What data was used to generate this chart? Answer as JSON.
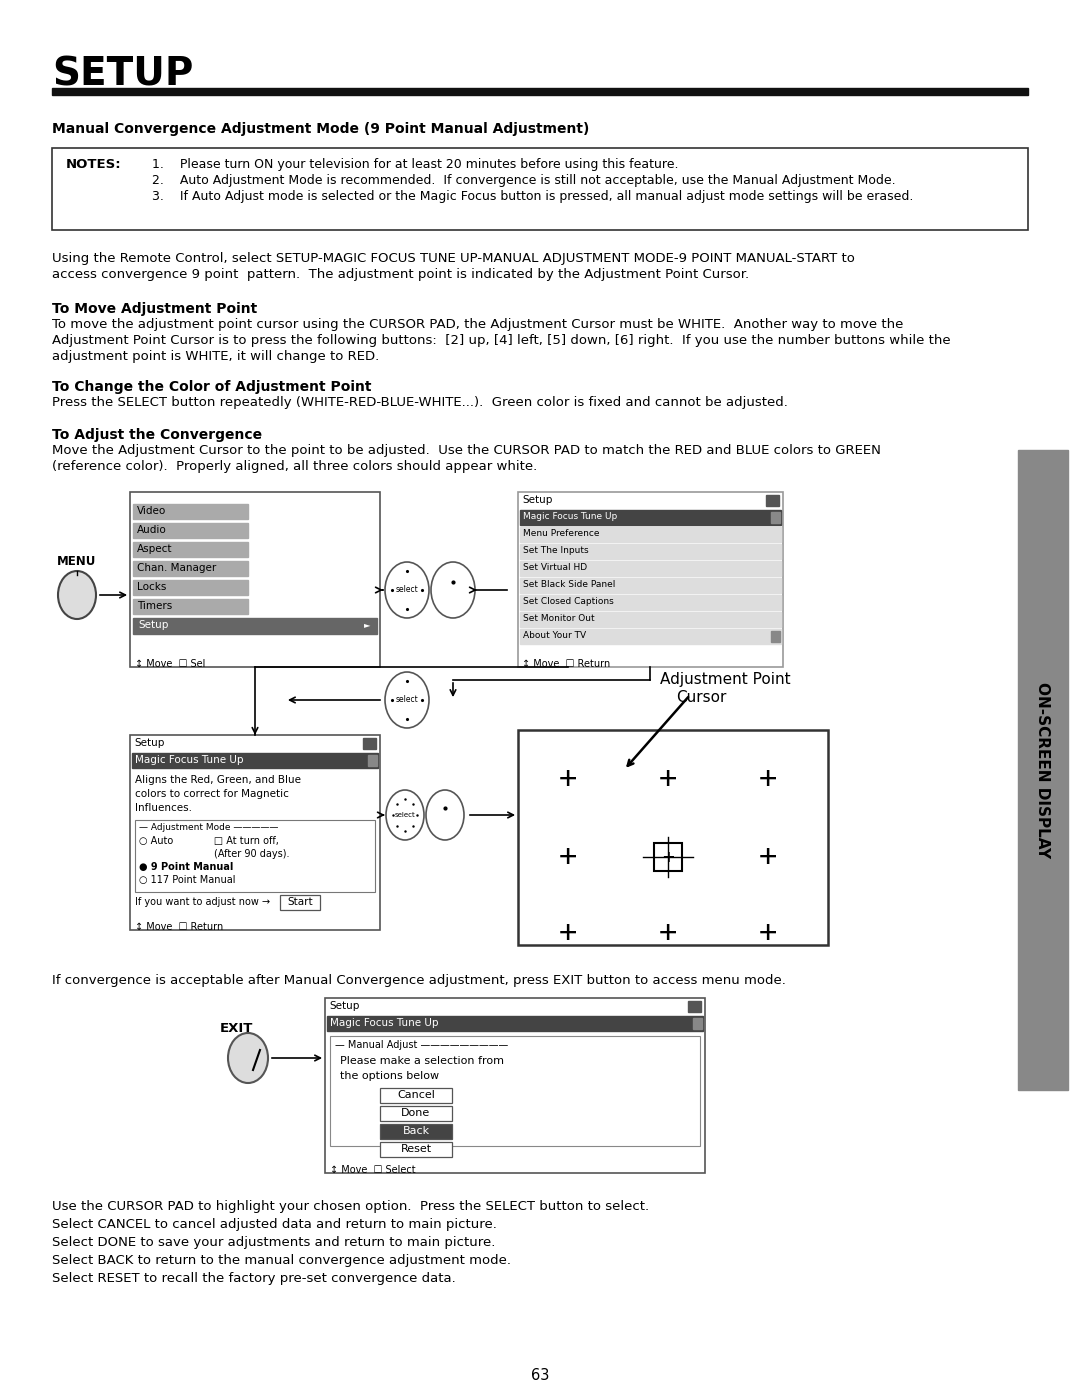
{
  "title": "SETUP",
  "bg_color": "#ffffff",
  "text_color": "#000000",
  "page_number": "63",
  "sidebar_text": "ON-SCREEN DISPLAY",
  "section_heading": "Manual Convergence Adjustment Mode (9 Point Manual Adjustment)",
  "note1": "Please turn ON your television for at least 20 minutes before using this feature.",
  "note2": "Auto Adjustment Mode is recommended.  If convergence is still not acceptable, use the Manual Adjustment Mode.",
  "note3": "If Auto Adjust mode is selected or the Magic Focus button is pressed, all manual adjust mode settings will be erased.",
  "para1_l1": "Using the Remote Control, select SETUP-MAGIC FOCUS TUNE UP-MANUAL ADJUSTMENT MODE-9 POINT MANUAL-START to",
  "para1_l2": "access convergence 9 point  pattern.  The adjustment point is indicated by the Adjustment Point Cursor.",
  "sub1_title": "To Move Adjustment Point",
  "sub1_l1": "To move the adjustment point cursor using the CURSOR PAD, the Adjustment Cursor must be WHITE.  Another way to move the",
  "sub1_l2": "Adjustment Point Cursor is to press the following buttons:  [2] up, [4] left, [5] down, [6] right.  If you use the number buttons while the",
  "sub1_l3": "adjustment point is WHITE, it will change to RED.",
  "sub2_title": "To Change the Color of Adjustment Point",
  "sub2_body": "Press the SELECT button repeatedly (WHITE-RED-BLUE-WHITE...).  Green color is fixed and cannot be adjusted.",
  "sub3_title": "To Adjust the Convergence",
  "sub3_l1": "Move the Adjustment Cursor to the point to be adjusted.  Use the CURSOR PAD to match the RED and BLUE colors to GREEN",
  "sub3_l2": "(reference color).  Properly aligned, all three colors should appear white.",
  "convergence_note": "If convergence is acceptable after Manual Convergence adjustment, press EXIT button to access menu mode.",
  "footer_l1": "Use the CURSOR PAD to highlight your chosen option.  Press the SELECT button to select.",
  "footer_l2": "Select CANCEL to cancel adjusted data and return to main picture.",
  "footer_l3": "Select DONE to save your adjustments and return to main picture.",
  "footer_l4": "Select BACK to return to the manual convergence adjustment mode.",
  "footer_l5": "Select RESET to recall the factory pre-set convergence data.",
  "menu_items": [
    "Video",
    "Audio",
    "Aspect",
    "Chan. Manager",
    "Locks",
    "Timers",
    "Setup"
  ],
  "setup_items": [
    "Magic Focus Tune Up",
    "Menu Preference",
    "Set The Inputs",
    "Set Virtual HD",
    "Set Black Side Panel",
    "Set Closed Captions",
    "Set Monitor Out",
    "About Your TV"
  ]
}
